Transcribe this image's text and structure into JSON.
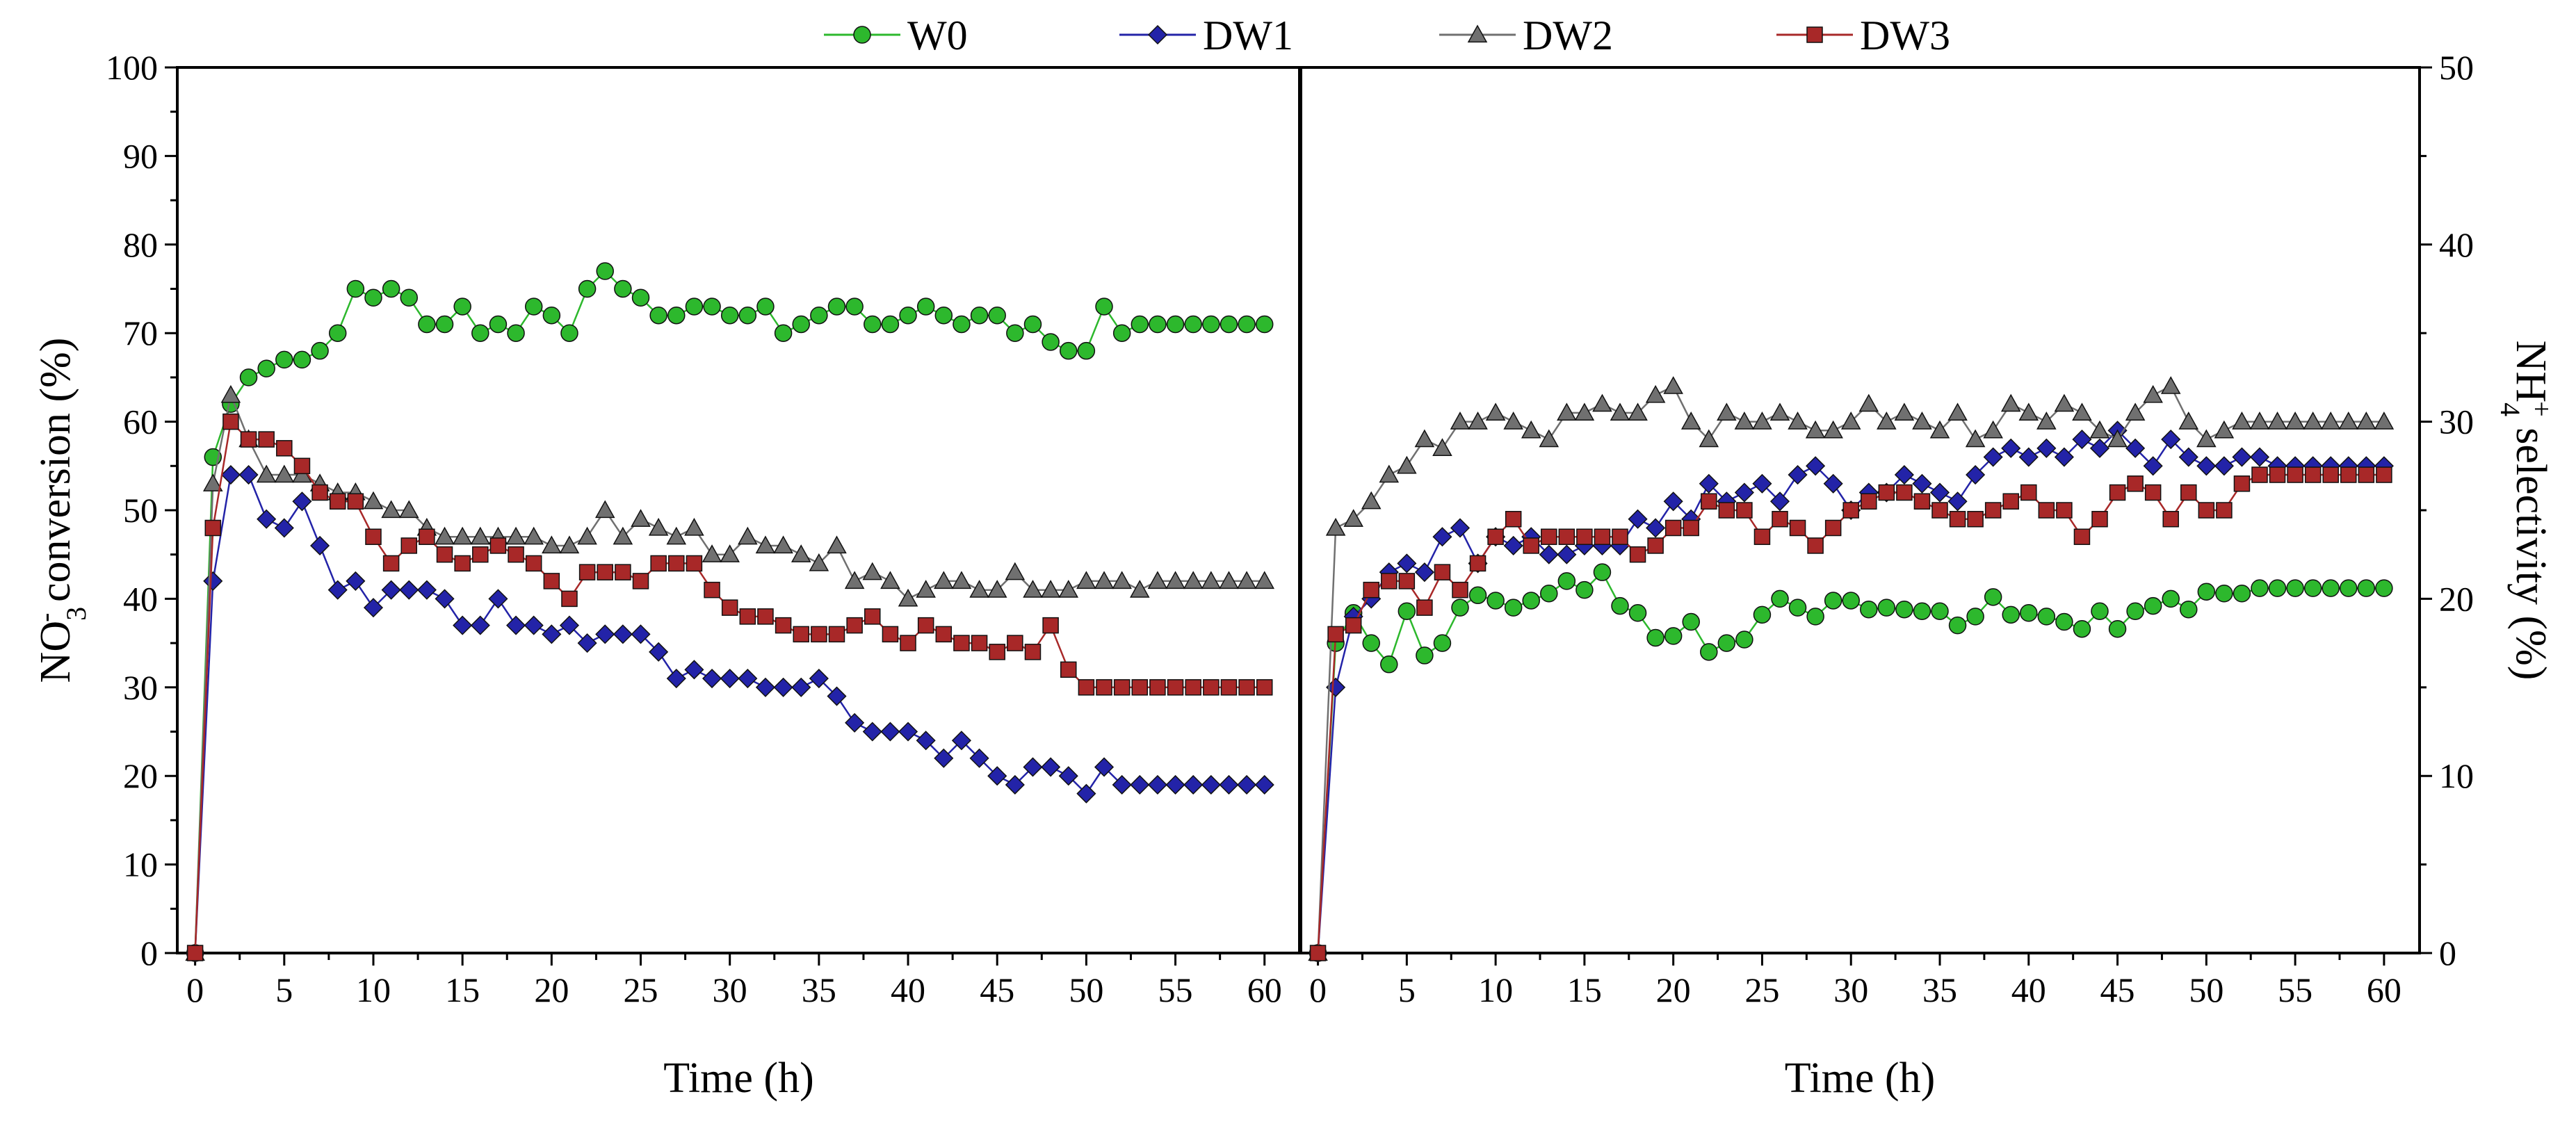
{
  "chart_data": {
    "type": "line",
    "x": [
      0,
      1,
      2,
      3,
      4,
      5,
      6,
      7,
      8,
      9,
      10,
      11,
      12,
      13,
      14,
      15,
      16,
      17,
      18,
      19,
      20,
      21,
      22,
      23,
      24,
      25,
      26,
      27,
      28,
      29,
      30,
      31,
      32,
      33,
      34,
      35,
      36,
      37,
      38,
      39,
      40,
      41,
      42,
      43,
      44,
      45,
      46,
      47,
      48,
      49,
      50,
      51,
      52,
      53,
      54,
      55,
      56,
      57,
      58,
      59,
      60
    ],
    "legend": [
      "W0",
      "DW1",
      "DW2",
      "DW3"
    ],
    "panels": [
      {
        "name": "NO3- conversion",
        "xlabel": "Time (h)",
        "ylabel_main": "NO",
        "ylabel_sub": "3",
        "ylabel_sup": "-",
        "ylabel_rest": " conversion (%)",
        "ylim": [
          0,
          100
        ],
        "yticks": [
          "0",
          "10",
          "20",
          "30",
          "40",
          "50",
          "60",
          "70",
          "80",
          "90",
          "100"
        ],
        "xticks": [
          "0",
          "5",
          "10",
          "15",
          "20",
          "25",
          "30",
          "35",
          "40",
          "45",
          "50",
          "55",
          "60"
        ],
        "series": [
          {
            "name": "W0",
            "color": "#2db82d",
            "marker": "circle",
            "values": [
              0,
              56,
              62,
              65,
              66,
              67,
              67,
              68,
              70,
              75,
              74,
              75,
              74,
              71,
              71,
              73,
              70,
              71,
              70,
              73,
              72,
              70,
              75,
              77,
              75,
              74,
              72,
              72,
              73,
              73,
              72,
              72,
              73,
              70,
              71,
              72,
              73,
              73,
              71,
              71,
              72,
              73,
              72,
              71,
              72,
              72,
              70,
              71,
              69,
              68,
              68,
              73,
              70,
              71,
              71,
              71,
              71,
              71,
              71,
              71,
              71
            ]
          },
          {
            "name": "DW1",
            "color": "#2323a8",
            "marker": "diamond",
            "values": [
              0,
              42,
              54,
              54,
              49,
              48,
              51,
              46,
              41,
              42,
              39,
              41,
              41,
              41,
              40,
              37,
              37,
              40,
              37,
              37,
              36,
              37,
              35,
              36,
              36,
              36,
              34,
              31,
              32,
              31,
              31,
              31,
              30,
              30,
              30,
              31,
              29,
              26,
              25,
              25,
              25,
              24,
              22,
              24,
              22,
              20,
              19,
              21,
              21,
              20,
              18,
              21,
              19,
              19,
              19,
              19,
              19,
              19,
              19,
              19,
              19
            ]
          },
          {
            "name": "DW2",
            "color": "#707070",
            "marker": "triangle",
            "values": [
              0,
              53,
              63,
              58,
              54,
              54,
              54,
              53,
              52,
              52,
              51,
              50,
              50,
              48,
              47,
              47,
              47,
              47,
              47,
              47,
              46,
              46,
              47,
              50,
              47,
              49,
              48,
              47,
              48,
              45,
              45,
              47,
              46,
              46,
              45,
              44,
              46,
              42,
              43,
              42,
              40,
              41,
              42,
              42,
              41,
              41,
              43,
              41,
              41,
              41,
              42,
              42,
              42,
              41,
              42,
              42,
              42,
              42,
              42,
              42,
              42
            ]
          },
          {
            "name": "DW3",
            "color": "#a82828",
            "marker": "square",
            "values": [
              0,
              48,
              60,
              58,
              58,
              57,
              55,
              52,
              51,
              51,
              47,
              44,
              46,
              47,
              45,
              44,
              45,
              46,
              45,
              44,
              42,
              40,
              43,
              43,
              43,
              42,
              44,
              44,
              44,
              41,
              39,
              38,
              38,
              37,
              36,
              36,
              36,
              37,
              38,
              36,
              35,
              37,
              36,
              35,
              35,
              34,
              35,
              34,
              37,
              32,
              30,
              30,
              30,
              30,
              30,
              30,
              30,
              30,
              30,
              30,
              30
            ]
          }
        ]
      },
      {
        "name": "NH4+ selectivity",
        "xlabel": "Time (h)",
        "ylabel_main": "NH",
        "ylabel_sub": "4",
        "ylabel_sup": "+",
        "ylabel_rest": " selectivity (%)",
        "ylim": [
          0,
          50
        ],
        "yticks": [
          "0",
          "10",
          "20",
          "30",
          "40",
          "50"
        ],
        "xticks": [
          "0",
          "5",
          "10",
          "15",
          "20",
          "25",
          "30",
          "35",
          "40",
          "45",
          "50",
          "55",
          "60"
        ],
        "series": [
          {
            "name": "W0",
            "color": "#2db82d",
            "marker": "circle",
            "values": [
              0,
              17.5,
              19.2,
              17.5,
              16.3,
              19.3,
              16.8,
              17.5,
              19.5,
              20.2,
              19.9,
              19.5,
              19.9,
              20.3,
              21.0,
              20.5,
              21.5,
              19.6,
              19.2,
              17.8,
              17.9,
              18.7,
              17.0,
              17.5,
              17.7,
              19.1,
              20.0,
              19.5,
              19.0,
              19.9,
              19.9,
              19.4,
              19.5,
              19.4,
              19.3,
              19.3,
              18.5,
              19.0,
              20.1,
              19.1,
              19.2,
              19.0,
              18.7,
              18.3,
              19.3,
              18.3,
              19.3,
              19.6,
              20.0,
              19.4,
              20.4,
              20.3,
              20.3,
              20.6,
              20.6,
              20.6,
              20.6,
              20.6,
              20.6,
              20.6,
              20.6
            ]
          },
          {
            "name": "DW1",
            "color": "#2323a8",
            "marker": "diamond",
            "values": [
              0,
              15.0,
              19.0,
              20.0,
              21.5,
              22.0,
              21.5,
              23.5,
              24.0,
              22.0,
              23.5,
              23.0,
              23.5,
              22.5,
              22.5,
              23.0,
              23.0,
              23.0,
              24.5,
              24.0,
              25.5,
              24.5,
              26.5,
              25.5,
              26.0,
              26.5,
              25.5,
              27.0,
              27.5,
              26.5,
              25.0,
              26.0,
              26.0,
              27.0,
              26.5,
              26.0,
              25.5,
              27.0,
              28.0,
              28.5,
              28.0,
              28.5,
              28.0,
              29.0,
              28.5,
              29.5,
              28.5,
              27.5,
              29.0,
              28.0,
              27.5,
              27.5,
              28.0,
              28.0,
              27.5,
              27.5,
              27.5,
              27.5,
              27.5,
              27.5,
              27.5
            ]
          },
          {
            "name": "DW2",
            "color": "#707070",
            "marker": "triangle",
            "values": [
              0,
              24.0,
              24.5,
              25.5,
              27.0,
              27.5,
              29.0,
              28.5,
              30.0,
              30.0,
              30.5,
              30.0,
              29.5,
              29.0,
              30.5,
              30.5,
              31.0,
              30.5,
              30.5,
              31.5,
              32.0,
              30.0,
              29.0,
              30.5,
              30.0,
              30.0,
              30.5,
              30.0,
              29.5,
              29.5,
              30.0,
              31.0,
              30.0,
              30.5,
              30.0,
              29.5,
              30.5,
              29.0,
              29.5,
              31.0,
              30.5,
              30.0,
              31.0,
              30.5,
              29.5,
              29.0,
              30.5,
              31.5,
              32.0,
              30.0,
              29.0,
              29.5,
              30.0,
              30.0,
              30.0,
              30.0,
              30.0,
              30.0,
              30.0,
              30.0,
              30.0
            ]
          },
          {
            "name": "DW3",
            "color": "#a82828",
            "marker": "square",
            "values": [
              0,
              18.0,
              18.5,
              20.5,
              21.0,
              21.0,
              19.5,
              21.5,
              20.5,
              22.0,
              23.5,
              24.5,
              23.0,
              23.5,
              23.5,
              23.5,
              23.5,
              23.5,
              22.5,
              23.0,
              24.0,
              24.0,
              25.5,
              25.0,
              25.0,
              23.5,
              24.5,
              24.0,
              23.0,
              24.0,
              25.0,
              25.5,
              26.0,
              26.0,
              25.5,
              25.0,
              24.5,
              24.5,
              25.0,
              25.5,
              26.0,
              25.0,
              25.0,
              23.5,
              24.5,
              26.0,
              26.5,
              26.0,
              24.5,
              26.0,
              25.0,
              25.0,
              26.5,
              27.0,
              27.0,
              27.0,
              27.0,
              27.0,
              27.0,
              27.0,
              27.0
            ]
          }
        ]
      }
    ]
  }
}
